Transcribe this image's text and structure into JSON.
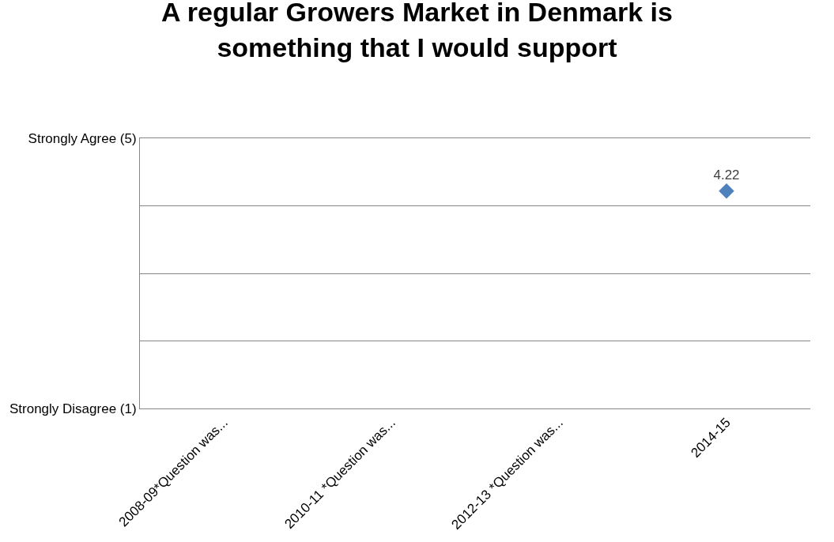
{
  "chart_data": {
    "type": "scatter",
    "title": "A regular Growers Market in Denmark is something that I would support",
    "categories": [
      "2008-09*Question was...",
      "2010-11 *Question was...",
      "2012-13 *Question was...",
      "2014-15"
    ],
    "series": [
      {
        "color": "#4f81bd",
        "values": [
          null,
          null,
          null,
          4.22
        ]
      }
    ],
    "ylim": [
      1,
      5
    ],
    "yticks": [
      {
        "value": 1,
        "label": "Strongly Disagree (1)"
      },
      {
        "value": 2,
        "label": null
      },
      {
        "value": 3,
        "label": null
      },
      {
        "value": 4,
        "label": null
      },
      {
        "value": 5,
        "label": "Strongly Agree (5)"
      }
    ],
    "grid": "y",
    "marker": "diamond",
    "data_labels": true,
    "legend": false
  }
}
